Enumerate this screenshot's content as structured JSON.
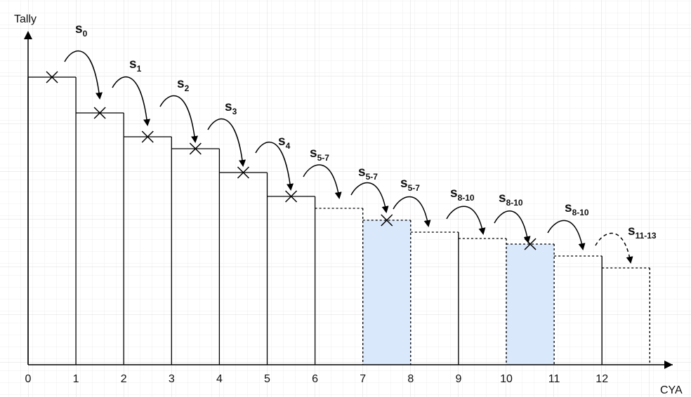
{
  "axes": {
    "y_label": "Tally",
    "x_label": "CYA",
    "x_ticks": [
      "0",
      "1",
      "2",
      "3",
      "4",
      "5",
      "6",
      "7",
      "8",
      "9",
      "10",
      "11",
      "12"
    ]
  },
  "steps": [
    {
      "symbol": "s",
      "subscript": "0"
    },
    {
      "symbol": "s",
      "subscript": "1"
    },
    {
      "symbol": "s",
      "subscript": "2"
    },
    {
      "symbol": "s",
      "subscript": "3"
    },
    {
      "symbol": "s",
      "subscript": "4"
    },
    {
      "symbol": "s",
      "subscript": "5-7"
    },
    {
      "symbol": "s",
      "subscript": "5-7"
    },
    {
      "symbol": "s",
      "subscript": "5-7"
    },
    {
      "symbol": "s",
      "subscript": "8-10"
    },
    {
      "symbol": "s",
      "subscript": "8-10"
    },
    {
      "symbol": "s",
      "subscript": "8-10"
    },
    {
      "symbol": "s",
      "subscript": "11-13"
    }
  ]
}
